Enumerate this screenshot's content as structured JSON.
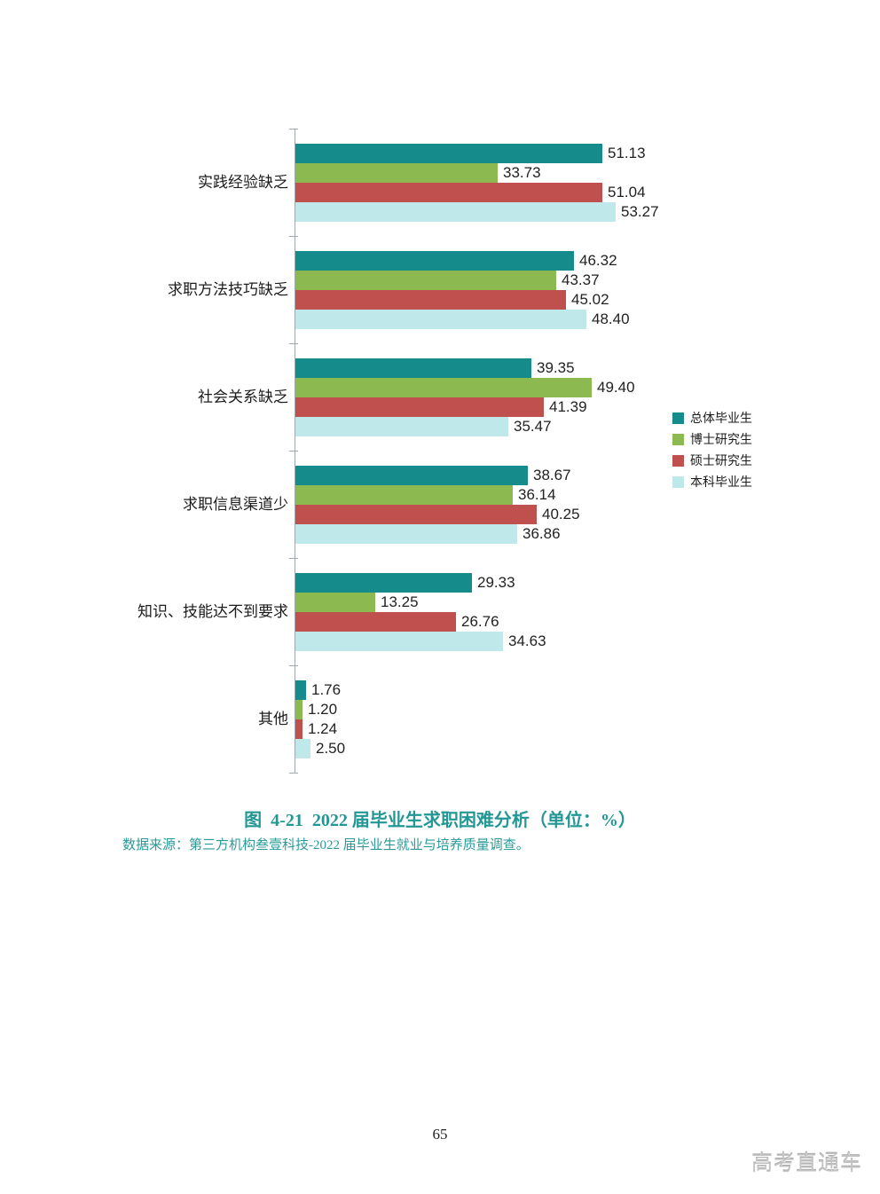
{
  "page": {
    "number": "65",
    "watermark": "高考直通车"
  },
  "chart_data": {
    "type": "bar",
    "orientation": "horizontal",
    "title": "图  4-21  2022 届毕业生求职困难分析（单位：%）",
    "source": "数据来源：第三方机构叁壹科技-2022 届毕业生就业与培养质量调查。",
    "categories": [
      "实践经验缺乏",
      "求职方法技巧缺乏",
      "社会关系缺乏",
      "求职信息渠道少",
      "知识、技能达不到要求",
      "其他"
    ],
    "series": [
      {
        "name": "总体毕业生",
        "color": "#158b8b",
        "values": [
          51.13,
          46.32,
          39.35,
          38.67,
          29.33,
          1.76
        ]
      },
      {
        "name": "博士研究生",
        "color": "#8cba50",
        "values": [
          33.73,
          43.37,
          49.4,
          36.14,
          13.25,
          1.2
        ]
      },
      {
        "name": "硕士研究生",
        "color": "#c0504d",
        "values": [
          51.04,
          45.02,
          41.39,
          40.25,
          26.76,
          1.24
        ]
      },
      {
        "name": "本科毕业生",
        "color": "#bfe8ea",
        "values": [
          53.27,
          48.4,
          35.47,
          36.86,
          34.63,
          2.5
        ]
      }
    ],
    "xlim": [
      0,
      60
    ],
    "value_labels": true,
    "value_label_decimals": 2,
    "grid": false,
    "legend_position": "right",
    "axis_color": "#9fa8ab",
    "text_color": "#222222",
    "accent_color": "#239795"
  }
}
